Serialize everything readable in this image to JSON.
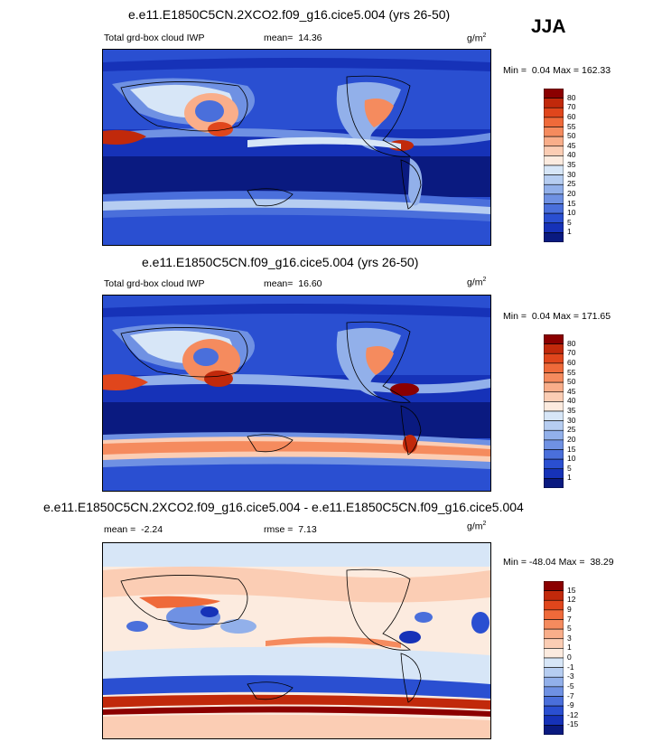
{
  "header": {
    "season": "JJA"
  },
  "panels": [
    {
      "title": "e.e11.E1850C5CN.2XCO2.f09_g16.cice5.004 (yrs 26-50)",
      "subtitle": "Total grd-box cloud IWP",
      "mean_label": "mean=",
      "mean_value": "14.36",
      "units_base": "g/m",
      "units_exp": "2",
      "min_label": "Min =",
      "min_value": "0.04",
      "max_label": "Max =",
      "max_value": "162.33",
      "colorbar": {
        "labels": [
          "80",
          "70",
          "60",
          "55",
          "50",
          "45",
          "40",
          "35",
          "30",
          "25",
          "20",
          "15",
          "10",
          "5",
          "1"
        ],
        "colors": [
          "#8b0000",
          "#c1290b",
          "#e0461c",
          "#ef6a3a",
          "#f58b5e",
          "#f9ae8a",
          "#fbcdb4",
          "#fcebdf",
          "#d7e6f7",
          "#b6cdf1",
          "#92b0ea",
          "#6f91e3",
          "#4a6fdb",
          "#2a4fd1",
          "#1632b8",
          "#0a1a80"
        ]
      }
    },
    {
      "title": "e.e11.E1850C5CN.f09_g16.cice5.004 (yrs 26-50)",
      "subtitle": "Total grd-box cloud IWP",
      "mean_label": "mean=",
      "mean_value": "16.60",
      "units_base": "g/m",
      "units_exp": "2",
      "min_label": "Min =",
      "min_value": "0.04",
      "max_label": "Max =",
      "max_value": "171.65",
      "colorbar": {
        "labels": [
          "80",
          "70",
          "60",
          "55",
          "50",
          "45",
          "40",
          "35",
          "30",
          "25",
          "20",
          "15",
          "10",
          "5",
          "1"
        ],
        "colors": [
          "#8b0000",
          "#c1290b",
          "#e0461c",
          "#ef6a3a",
          "#f58b5e",
          "#f9ae8a",
          "#fbcdb4",
          "#fcebdf",
          "#d7e6f7",
          "#b6cdf1",
          "#92b0ea",
          "#6f91e3",
          "#4a6fdb",
          "#2a4fd1",
          "#1632b8",
          "#0a1a80"
        ]
      }
    },
    {
      "title": "e.e11.E1850C5CN.2XCO2.f09_g16.cice5.004 - e.e11.E1850C5CN.f09_g16.cice5.004",
      "mean_label": "mean =",
      "mean_value": "-2.24",
      "rmse_label": "rmse =",
      "rmse_value": "7.13",
      "units_base": "g/m",
      "units_exp": "2",
      "min_label": "Min =",
      "min_value": "-48.04",
      "max_label": "Max =",
      "max_value": "38.29",
      "colorbar": {
        "labels": [
          "15",
          "12",
          "9",
          "7",
          "5",
          "3",
          "1",
          "0",
          "-1",
          "-3",
          "-5",
          "-7",
          "-9",
          "-12",
          "-15"
        ],
        "colors": [
          "#8b0000",
          "#c1290b",
          "#e0461c",
          "#ef6a3a",
          "#f58b5e",
          "#f9ae8a",
          "#fbcdb4",
          "#fcebdf",
          "#d7e6f7",
          "#b6cdf1",
          "#92b0ea",
          "#6f91e3",
          "#4a6fdb",
          "#2a4fd1",
          "#1632b8",
          "#0a1a80"
        ]
      }
    }
  ]
}
